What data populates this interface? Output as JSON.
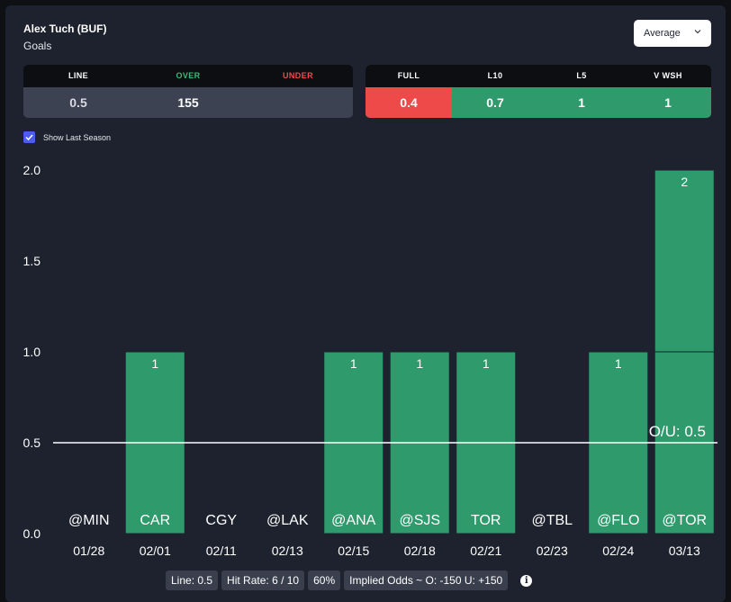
{
  "header": {
    "player": "Alex Tuch (BUF)",
    "market": "Goals",
    "dropdown": {
      "selected": "Average"
    }
  },
  "line_panel": {
    "headers": [
      "LINE",
      "OVER",
      "UNDER"
    ],
    "values": [
      "0.5",
      "155",
      ""
    ]
  },
  "stats_panel": {
    "headers": [
      "FULL",
      "L10",
      "L5",
      "V WSH"
    ],
    "values": [
      "0.4",
      "0.7",
      "1",
      "1"
    ]
  },
  "show_last_season": {
    "label": "Show Last Season",
    "checked": true
  },
  "chart_data": {
    "type": "bar",
    "categories": [
      "01/28",
      "02/01",
      "02/11",
      "02/13",
      "02/15",
      "02/18",
      "02/21",
      "02/23",
      "02/24",
      "03/13"
    ],
    "opponents": [
      "@MIN",
      "CAR",
      "CGY",
      "@LAK",
      "@ANA",
      "@SJS",
      "TOR",
      "@TBL",
      "@FLO",
      "@TOR"
    ],
    "values": [
      0,
      1,
      0,
      0,
      1,
      1,
      1,
      0,
      1,
      2
    ],
    "data_labels": [
      "",
      "1",
      "",
      "",
      "1",
      "1",
      "1",
      "",
      "1",
      "2"
    ],
    "y_ticks": [
      "0.0",
      "0.5",
      "1.0",
      "1.5",
      "2.0"
    ],
    "ylim": [
      0,
      2
    ],
    "reference_line": {
      "value": 0.5,
      "label": "O/U: 0.5"
    },
    "colors": {
      "bar": "#2f9a6b",
      "segment_divider": "#1e222e",
      "line": "#ffffff"
    }
  },
  "footer": {
    "pills": [
      "Line: 0.5",
      "Hit Rate: 6 / 10",
      "60%",
      "Implied Odds ~ O: -150 U: +150"
    ],
    "info_icon": "info-icon"
  }
}
